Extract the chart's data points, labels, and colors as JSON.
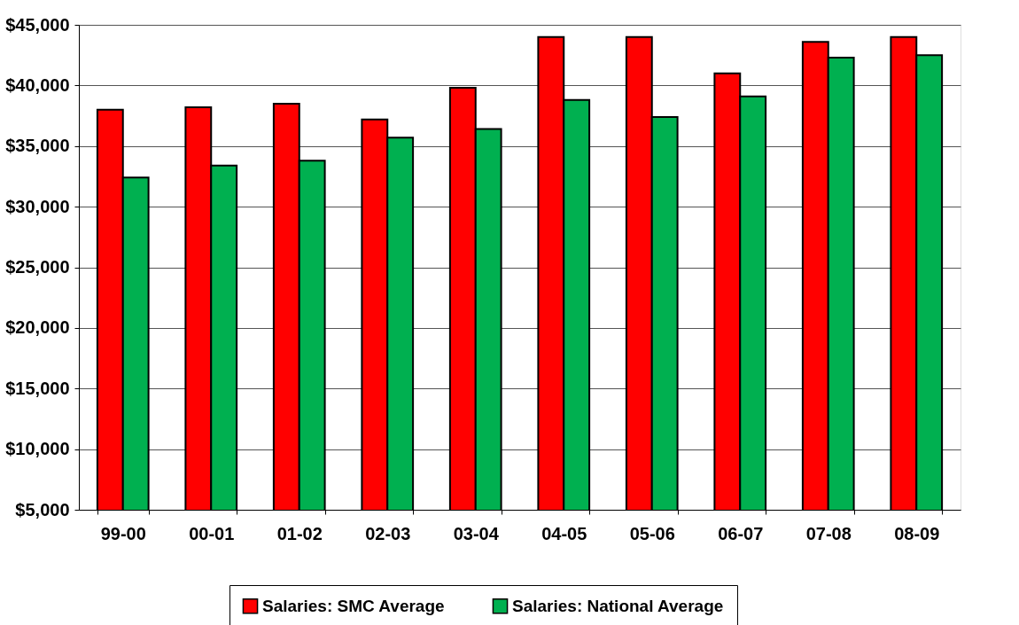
{
  "chart_data": {
    "type": "bar",
    "categories": [
      "99-00",
      "00-01",
      "01-02",
      "02-03",
      "03-04",
      "04-05",
      "05-06",
      "06-07",
      "07-08",
      "08-09"
    ],
    "series": [
      {
        "name": "Salaries: SMC Average",
        "color": "#ff0000",
        "values": [
          38000,
          38200,
          38500,
          37200,
          39800,
          44000,
          44000,
          41000,
          43600,
          44000
        ]
      },
      {
        "name": "Salaries: National Average",
        "color": "#00b050",
        "values": [
          32400,
          33400,
          33800,
          35700,
          36400,
          38800,
          37400,
          39100,
          42300,
          42500
        ]
      }
    ],
    "ylim": [
      5000,
      45000
    ],
    "yticks": [
      {
        "value": 5000,
        "label": "$5,000"
      },
      {
        "value": 10000,
        "label": "$10,000"
      },
      {
        "value": 15000,
        "label": "$15,000"
      },
      {
        "value": 20000,
        "label": "$20,000"
      },
      {
        "value": 25000,
        "label": "$25,000"
      },
      {
        "value": 30000,
        "label": "$30,000"
      },
      {
        "value": 35000,
        "label": "$35,000"
      },
      {
        "value": 40000,
        "label": "$40,000"
      },
      {
        "value": 45000,
        "label": "$45,000"
      }
    ],
    "grid": "y",
    "legend": "bottom"
  }
}
